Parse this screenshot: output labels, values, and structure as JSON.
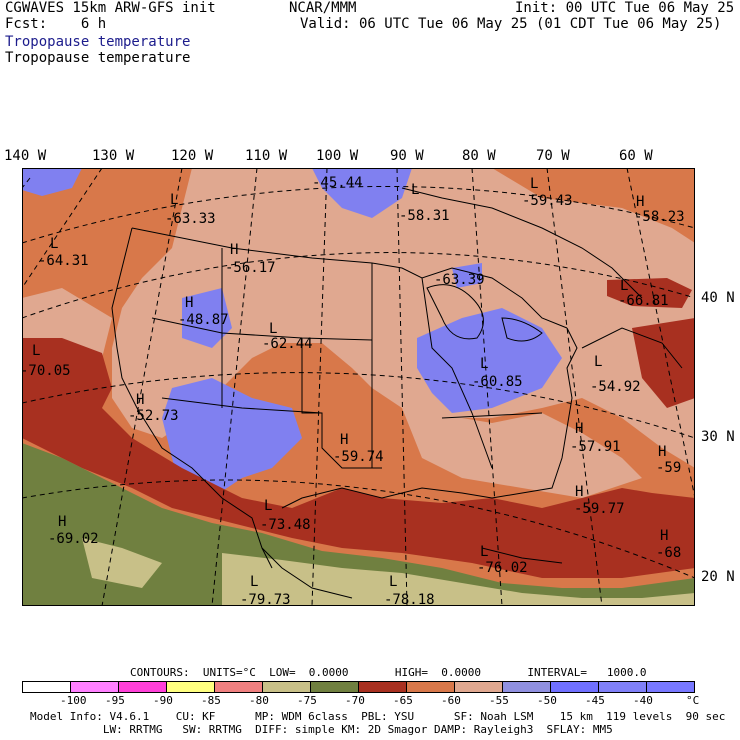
{
  "header": {
    "left1": "CGWAVES 15km ARW-GFS init",
    "center1": "NCAR/MMM",
    "right1": "Init: 00 UTC Tue 06 May 25",
    "left2": "Fcst:    6 h",
    "right2": "Valid: 06 UTC Tue 06 May 25 (01 CDT Tue 06 May 25)",
    "field1": "Tropopause temperature",
    "field2": "Tropopause temperature"
  },
  "lon_labels": [
    "140 W",
    "130 W",
    "120 W",
    "110 W",
    "100 W",
    "90 W",
    "80 W",
    "70 W",
    "60 W"
  ],
  "lat_labels": [
    "40 N",
    "30 N",
    "20 N"
  ],
  "extrema": [
    {
      "type": "L",
      "value": "-63.33"
    },
    {
      "type": "L",
      "value": "-45.44"
    },
    {
      "type": "L",
      "value": "-58.31"
    },
    {
      "type": "L",
      "value": "-59.43"
    },
    {
      "type": "H",
      "value": "-58.23"
    },
    {
      "type": "L",
      "value": "-64.31"
    },
    {
      "type": "H",
      "value": "-56.17"
    },
    {
      "type": "L",
      "value": "-63.39"
    },
    {
      "type": "L",
      "value": "-66.81"
    },
    {
      "type": "H",
      "value": "-48.87"
    },
    {
      "type": "L",
      "value": "-62.44"
    },
    {
      "type": "L",
      "value": "-70.05"
    },
    {
      "type": "L",
      "value": "-60.85"
    },
    {
      "type": "L",
      "value": "-54.92"
    },
    {
      "type": "H",
      "value": "-52.73"
    },
    {
      "type": "H",
      "value": "-59.74"
    },
    {
      "type": "H",
      "value": "-57.91"
    },
    {
      "type": "H",
      "value": "-59"
    },
    {
      "type": "H",
      "value": "-69.02"
    },
    {
      "type": "L",
      "value": "-73.48"
    },
    {
      "type": "H",
      "value": "-59.77"
    },
    {
      "type": "L",
      "value": "-76.02"
    },
    {
      "type": "H",
      "value": "-68"
    },
    {
      "type": "L",
      "value": "-79.73"
    },
    {
      "type": "L",
      "value": "-78.18"
    }
  ],
  "contours_line": "CONTOURS:  UNITS=°C  LOW=  0.0000       HIGH=  0.0000       INTERVAL=   1000.0",
  "legend": {
    "colors": [
      "#ffffff",
      "#ff80ff",
      "#ff40d8",
      "#ffff80",
      "#f08080",
      "#c8c088",
      "#708040",
      "#a83020",
      "#d8784a",
      "#e0a890",
      "#9090e0",
      "#7070ff",
      "#8080f8",
      "#7878ff"
    ],
    "labels": [
      "-100",
      "-95",
      "-90",
      "-85",
      "-80",
      "-75",
      "-70",
      "-65",
      "-60",
      "-55",
      "-50",
      "-45",
      "-40",
      "°C"
    ]
  },
  "footer": {
    "line1": "Model Info: V4.6.1    CU: KF      MP: WDM 6class  PBL: YSU      SF: Noah LSM    15 km  119 levels  90 sec",
    "line2": "           LW: RRTMG   SW: RRTMG  DIFF: simple KM: 2D Smagor DAMP: Rayleigh3  SFLAY: MM5"
  }
}
